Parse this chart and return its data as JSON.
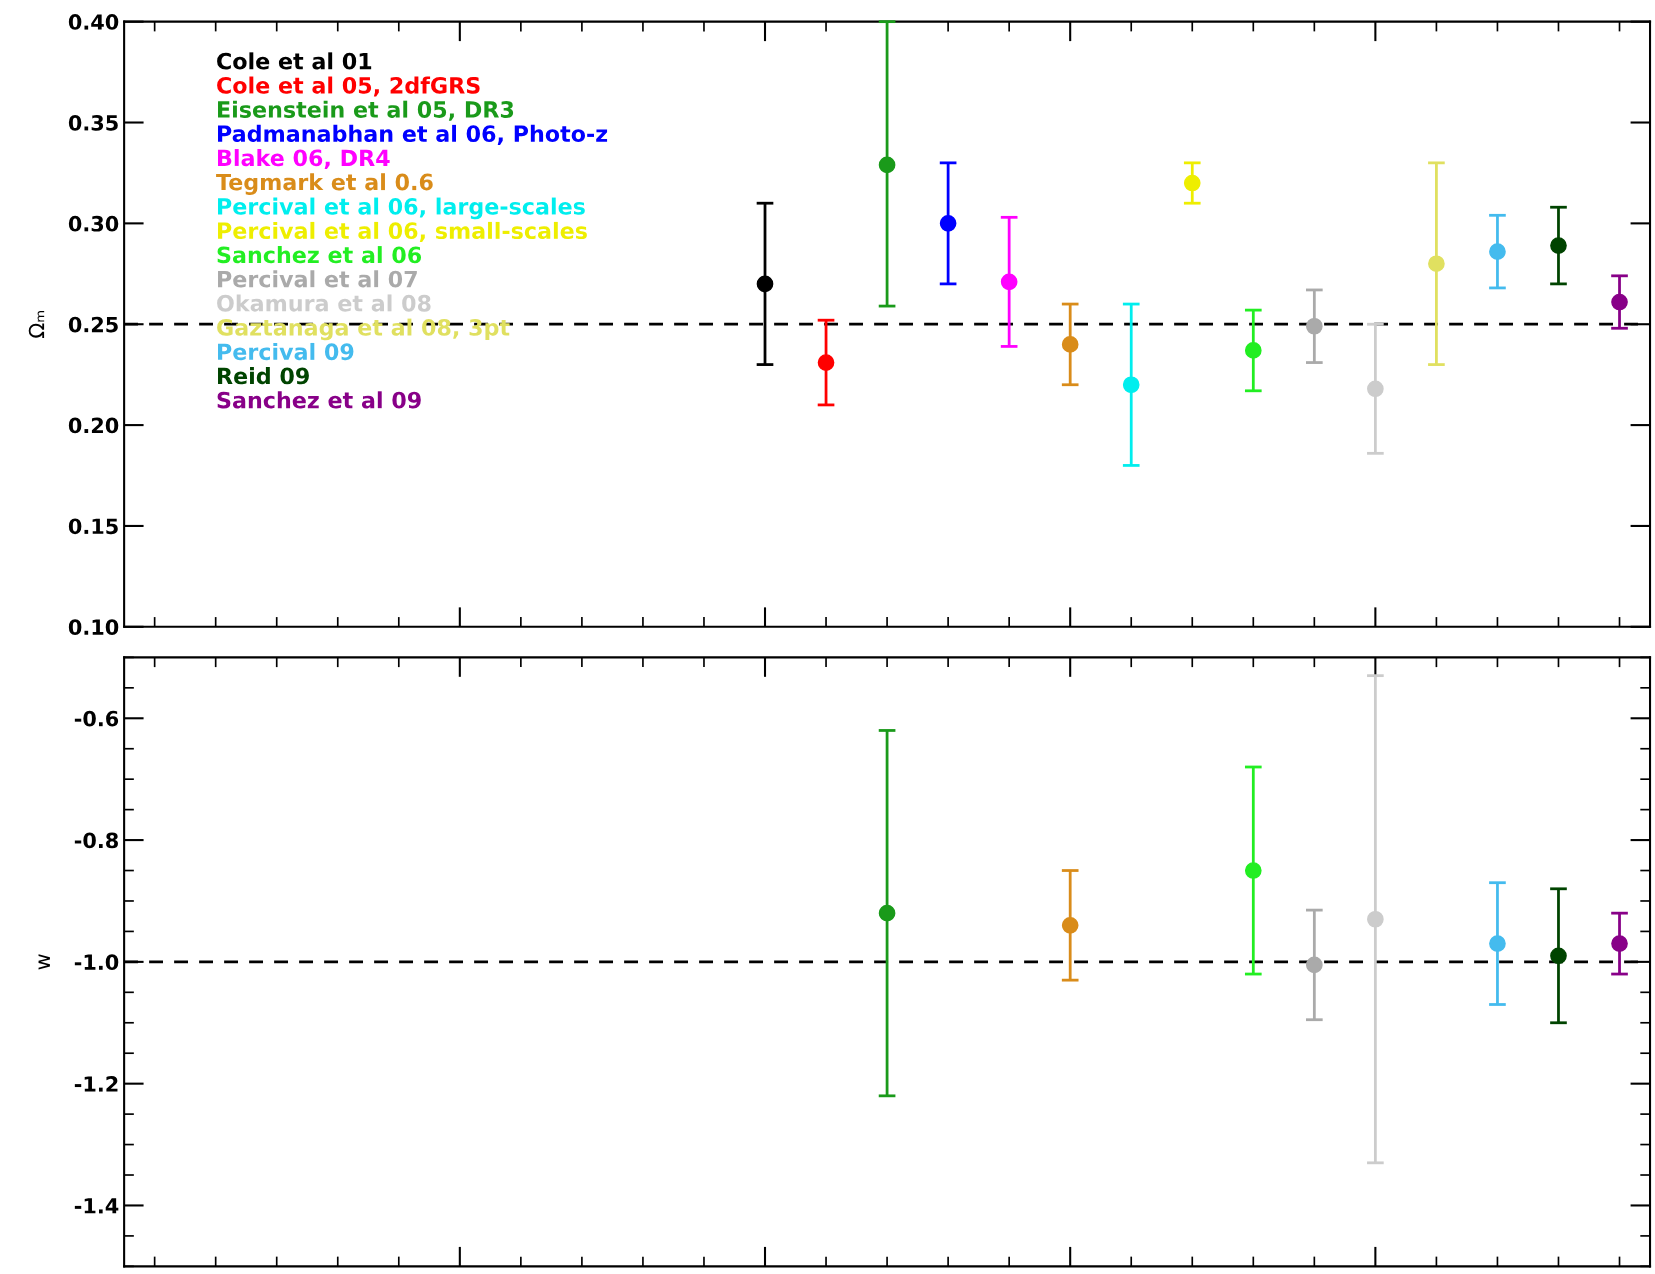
{
  "chart_data": [
    {
      "type": "scatter",
      "ylabel": "Ωₘ",
      "categories": [
        null,
        null,
        null,
        null,
        null,
        null,
        null,
        null,
        null,
        null,
        null,
        null,
        null,
        null,
        null,
        null,
        null,
        null,
        null,
        null,
        null,
        null,
        null,
        null,
        null
      ],
      "ylim": [
        0.1,
        0.4
      ],
      "yticks": [
        {
          "value": 0.1,
          "label": "0.10"
        },
        {
          "value": 0.15,
          "label": "0.15"
        },
        {
          "value": 0.2,
          "label": "0.20"
        },
        {
          "value": 0.25,
          "label": "0.25"
        },
        {
          "value": 0.3,
          "label": "0.30"
        },
        {
          "value": 0.35,
          "label": "0.35"
        },
        {
          "value": 0.4,
          "label": "0.40"
        }
      ],
      "tick_labels": "y",
      "legend": "top left",
      "marker": "circle",
      "grid": false,
      "ref_lines": [
        {
          "axis": "y",
          "value": 0.25,
          "color": "#000000",
          "line_style": "dashed"
        }
      ],
      "series": [
        {
          "name": "Cole et al 01",
          "color": "#000000",
          "values": [
            null,
            null,
            null,
            null,
            null,
            null,
            null,
            null,
            null,
            null,
            0.27,
            null,
            null,
            null,
            null,
            null,
            null,
            null,
            null,
            null,
            null,
            null,
            null,
            null,
            null
          ],
          "errors": [
            null,
            null,
            null,
            null,
            null,
            null,
            null,
            null,
            null,
            null,
            [
              0.23,
              0.31
            ],
            null,
            null,
            null,
            null,
            null,
            null,
            null,
            null,
            null,
            null,
            null,
            null,
            null,
            null
          ]
        },
        {
          "name": "Cole et al 05, 2dfGRS",
          "color": "#ff0000",
          "values": [
            null,
            null,
            null,
            null,
            null,
            null,
            null,
            null,
            null,
            null,
            null,
            0.231,
            null,
            null,
            null,
            null,
            null,
            null,
            null,
            null,
            null,
            null,
            null,
            null,
            null
          ],
          "errors": [
            null,
            null,
            null,
            null,
            null,
            null,
            null,
            null,
            null,
            null,
            null,
            [
              0.21,
              0.252
            ],
            null,
            null,
            null,
            null,
            null,
            null,
            null,
            null,
            null,
            null,
            null,
            null,
            null
          ]
        },
        {
          "name": "Eisenstein et al 05, DR3",
          "color": "#1a9a1a",
          "values": [
            null,
            null,
            null,
            null,
            null,
            null,
            null,
            null,
            null,
            null,
            null,
            null,
            0.329,
            null,
            null,
            null,
            null,
            null,
            null,
            null,
            null,
            null,
            null,
            null,
            null
          ],
          "errors": [
            null,
            null,
            null,
            null,
            null,
            null,
            null,
            null,
            null,
            null,
            null,
            null,
            [
              0.259,
              0.4
            ],
            null,
            null,
            null,
            null,
            null,
            null,
            null,
            null,
            null,
            null,
            null,
            null
          ]
        },
        {
          "name": "Padmanabhan et al 06, Photo-z",
          "color": "#0000ff",
          "values": [
            null,
            null,
            null,
            null,
            null,
            null,
            null,
            null,
            null,
            null,
            null,
            null,
            null,
            0.3,
            null,
            null,
            null,
            null,
            null,
            null,
            null,
            null,
            null,
            null,
            null
          ],
          "errors": [
            null,
            null,
            null,
            null,
            null,
            null,
            null,
            null,
            null,
            null,
            null,
            null,
            null,
            [
              0.27,
              0.33
            ],
            null,
            null,
            null,
            null,
            null,
            null,
            null,
            null,
            null,
            null,
            null
          ]
        },
        {
          "name": "Blake 06, DR4",
          "color": "#ff00ff",
          "values": [
            null,
            null,
            null,
            null,
            null,
            null,
            null,
            null,
            null,
            null,
            null,
            null,
            null,
            null,
            0.271,
            null,
            null,
            null,
            null,
            null,
            null,
            null,
            null,
            null,
            null
          ],
          "errors": [
            null,
            null,
            null,
            null,
            null,
            null,
            null,
            null,
            null,
            null,
            null,
            null,
            null,
            null,
            [
              0.239,
              0.303
            ],
            null,
            null,
            null,
            null,
            null,
            null,
            null,
            null,
            null,
            null
          ]
        },
        {
          "name": "Tegmark et al 0.6",
          "color": "#d98c1a",
          "values": [
            null,
            null,
            null,
            null,
            null,
            null,
            null,
            null,
            null,
            null,
            null,
            null,
            null,
            null,
            null,
            0.24,
            null,
            null,
            null,
            null,
            null,
            null,
            null,
            null,
            null
          ],
          "errors": [
            null,
            null,
            null,
            null,
            null,
            null,
            null,
            null,
            null,
            null,
            null,
            null,
            null,
            null,
            null,
            [
              0.22,
              0.26
            ],
            null,
            null,
            null,
            null,
            null,
            null,
            null,
            null,
            null
          ]
        },
        {
          "name": "Percival et al 06, large-scales",
          "color": "#00eeee",
          "values": [
            null,
            null,
            null,
            null,
            null,
            null,
            null,
            null,
            null,
            null,
            null,
            null,
            null,
            null,
            null,
            null,
            0.22,
            null,
            null,
            null,
            null,
            null,
            null,
            null,
            null
          ],
          "errors": [
            null,
            null,
            null,
            null,
            null,
            null,
            null,
            null,
            null,
            null,
            null,
            null,
            null,
            null,
            null,
            null,
            [
              0.18,
              0.26
            ],
            null,
            null,
            null,
            null,
            null,
            null,
            null,
            null
          ]
        },
        {
          "name": "Percival et al 06, small-scales",
          "color": "#eeee00",
          "values": [
            null,
            null,
            null,
            null,
            null,
            null,
            null,
            null,
            null,
            null,
            null,
            null,
            null,
            null,
            null,
            null,
            null,
            0.32,
            null,
            null,
            null,
            null,
            null,
            null,
            null
          ],
          "errors": [
            null,
            null,
            null,
            null,
            null,
            null,
            null,
            null,
            null,
            null,
            null,
            null,
            null,
            null,
            null,
            null,
            null,
            [
              0.31,
              0.33
            ],
            null,
            null,
            null,
            null,
            null,
            null,
            null
          ]
        },
        {
          "name": "Sanchez et al 06",
          "color": "#22ee22",
          "values": [
            null,
            null,
            null,
            null,
            null,
            null,
            null,
            null,
            null,
            null,
            null,
            null,
            null,
            null,
            null,
            null,
            null,
            null,
            0.237,
            null,
            null,
            null,
            null,
            null,
            null
          ],
          "errors": [
            null,
            null,
            null,
            null,
            null,
            null,
            null,
            null,
            null,
            null,
            null,
            null,
            null,
            null,
            null,
            null,
            null,
            null,
            [
              0.217,
              0.257
            ],
            null,
            null,
            null,
            null,
            null,
            null
          ]
        },
        {
          "name": "Percival et al 07",
          "color": "#aaaaaa",
          "values": [
            null,
            null,
            null,
            null,
            null,
            null,
            null,
            null,
            null,
            null,
            null,
            null,
            null,
            null,
            null,
            null,
            null,
            null,
            null,
            0.249,
            null,
            null,
            null,
            null,
            null
          ],
          "errors": [
            null,
            null,
            null,
            null,
            null,
            null,
            null,
            null,
            null,
            null,
            null,
            null,
            null,
            null,
            null,
            null,
            null,
            null,
            null,
            [
              0.231,
              0.267
            ],
            null,
            null,
            null,
            null,
            null
          ]
        },
        {
          "name": "Okamura et al 08",
          "color": "#cccccc",
          "values": [
            null,
            null,
            null,
            null,
            null,
            null,
            null,
            null,
            null,
            null,
            null,
            null,
            null,
            null,
            null,
            null,
            null,
            null,
            null,
            null,
            0.218,
            null,
            null,
            null,
            null
          ],
          "errors": [
            null,
            null,
            null,
            null,
            null,
            null,
            null,
            null,
            null,
            null,
            null,
            null,
            null,
            null,
            null,
            null,
            null,
            null,
            null,
            null,
            [
              0.186,
              0.25
            ],
            null,
            null,
            null,
            null
          ]
        },
        {
          "name": "Gaztanaga et al 08, 3pt",
          "color": "#e0e060",
          "values": [
            null,
            null,
            null,
            null,
            null,
            null,
            null,
            null,
            null,
            null,
            null,
            null,
            null,
            null,
            null,
            null,
            null,
            null,
            null,
            null,
            null,
            0.28,
            null,
            null,
            null
          ],
          "errors": [
            null,
            null,
            null,
            null,
            null,
            null,
            null,
            null,
            null,
            null,
            null,
            null,
            null,
            null,
            null,
            null,
            null,
            null,
            null,
            null,
            null,
            [
              0.23,
              0.33
            ],
            null,
            null,
            null
          ]
        },
        {
          "name": "Percival 09",
          "color": "#44bbee",
          "values": [
            null,
            null,
            null,
            null,
            null,
            null,
            null,
            null,
            null,
            null,
            null,
            null,
            null,
            null,
            null,
            null,
            null,
            null,
            null,
            null,
            null,
            null,
            0.286,
            null,
            null
          ],
          "errors": [
            null,
            null,
            null,
            null,
            null,
            null,
            null,
            null,
            null,
            null,
            null,
            null,
            null,
            null,
            null,
            null,
            null,
            null,
            null,
            null,
            null,
            null,
            [
              0.268,
              0.304
            ],
            null,
            null
          ]
        },
        {
          "name": "Reid 09",
          "color": "#004400",
          "values": [
            null,
            null,
            null,
            null,
            null,
            null,
            null,
            null,
            null,
            null,
            null,
            null,
            null,
            null,
            null,
            null,
            null,
            null,
            null,
            null,
            null,
            null,
            null,
            0.289,
            null
          ],
          "errors": [
            null,
            null,
            null,
            null,
            null,
            null,
            null,
            null,
            null,
            null,
            null,
            null,
            null,
            null,
            null,
            null,
            null,
            null,
            null,
            null,
            null,
            null,
            null,
            [
              0.27,
              0.308
            ],
            null
          ]
        },
        {
          "name": "Sanchez et al 09",
          "color": "#880088",
          "values": [
            null,
            null,
            null,
            null,
            null,
            null,
            null,
            null,
            null,
            null,
            null,
            null,
            null,
            null,
            null,
            null,
            null,
            null,
            null,
            null,
            null,
            null,
            null,
            null,
            0.261
          ],
          "errors": [
            null,
            null,
            null,
            null,
            null,
            null,
            null,
            null,
            null,
            null,
            null,
            null,
            null,
            null,
            null,
            null,
            null,
            null,
            null,
            null,
            null,
            null,
            null,
            null,
            [
              0.248,
              0.274
            ]
          ]
        }
      ]
    },
    {
      "type": "scatter",
      "ylabel": "w",
      "categories": [
        null,
        null,
        null,
        null,
        null,
        null,
        null,
        null,
        null,
        null,
        null,
        null,
        null,
        null,
        null,
        null,
        null,
        null,
        null,
        null,
        null,
        null,
        null,
        null,
        null
      ],
      "ylim": [
        -1.5,
        -0.5
      ],
      "yticks": [
        {
          "value": -1.4,
          "label": "-1.4"
        },
        {
          "value": -1.2,
          "label": "-1.2"
        },
        {
          "value": -1.0,
          "label": "-1.0"
        },
        {
          "value": -0.8,
          "label": "-0.8"
        },
        {
          "value": -0.6,
          "label": "-0.6"
        }
      ],
      "tick_labels": "y",
      "marker": "circle",
      "grid": false,
      "ref_lines": [
        {
          "axis": "y",
          "value": -1.0,
          "color": "#000000",
          "line_style": "dashed"
        }
      ],
      "series": [
        {
          "color": "#1a9a1a",
          "values": [
            null,
            null,
            null,
            null,
            null,
            null,
            null,
            null,
            null,
            null,
            null,
            null,
            -0.92,
            null,
            null,
            null,
            null,
            null,
            null,
            null,
            null,
            null,
            null,
            null,
            null
          ],
          "errors": [
            null,
            null,
            null,
            null,
            null,
            null,
            null,
            null,
            null,
            null,
            null,
            null,
            [
              -1.22,
              -0.62
            ],
            null,
            null,
            null,
            null,
            null,
            null,
            null,
            null,
            null,
            null,
            null,
            null
          ]
        },
        {
          "color": "#d98c1a",
          "values": [
            null,
            null,
            null,
            null,
            null,
            null,
            null,
            null,
            null,
            null,
            null,
            null,
            null,
            null,
            null,
            -0.94,
            null,
            null,
            null,
            null,
            null,
            null,
            null,
            null,
            null
          ],
          "errors": [
            null,
            null,
            null,
            null,
            null,
            null,
            null,
            null,
            null,
            null,
            null,
            null,
            null,
            null,
            null,
            [
              -1.03,
              -0.85
            ],
            null,
            null,
            null,
            null,
            null,
            null,
            null,
            null,
            null
          ]
        },
        {
          "color": "#22ee22",
          "values": [
            null,
            null,
            null,
            null,
            null,
            null,
            null,
            null,
            null,
            null,
            null,
            null,
            null,
            null,
            null,
            null,
            null,
            null,
            -0.85,
            null,
            null,
            null,
            null,
            null,
            null
          ],
          "errors": [
            null,
            null,
            null,
            null,
            null,
            null,
            null,
            null,
            null,
            null,
            null,
            null,
            null,
            null,
            null,
            null,
            null,
            null,
            [
              -1.02,
              -0.68
            ],
            null,
            null,
            null,
            null,
            null,
            null
          ]
        },
        {
          "color": "#aaaaaa",
          "values": [
            null,
            null,
            null,
            null,
            null,
            null,
            null,
            null,
            null,
            null,
            null,
            null,
            null,
            null,
            null,
            null,
            null,
            null,
            null,
            -1.005,
            null,
            null,
            null,
            null,
            null
          ],
          "errors": [
            null,
            null,
            null,
            null,
            null,
            null,
            null,
            null,
            null,
            null,
            null,
            null,
            null,
            null,
            null,
            null,
            null,
            null,
            null,
            [
              -1.095,
              -0.915
            ],
            null,
            null,
            null,
            null,
            null
          ]
        },
        {
          "color": "#cccccc",
          "values": [
            null,
            null,
            null,
            null,
            null,
            null,
            null,
            null,
            null,
            null,
            null,
            null,
            null,
            null,
            null,
            null,
            null,
            null,
            null,
            null,
            -0.93,
            null,
            null,
            null,
            null
          ],
          "errors": [
            null,
            null,
            null,
            null,
            null,
            null,
            null,
            null,
            null,
            null,
            null,
            null,
            null,
            null,
            null,
            null,
            null,
            null,
            null,
            null,
            [
              -1.33,
              -0.53
            ],
            null,
            null,
            null,
            null
          ]
        },
        {
          "color": "#44bbee",
          "values": [
            null,
            null,
            null,
            null,
            null,
            null,
            null,
            null,
            null,
            null,
            null,
            null,
            null,
            null,
            null,
            null,
            null,
            null,
            null,
            null,
            null,
            null,
            -0.97,
            null,
            null
          ],
          "errors": [
            null,
            null,
            null,
            null,
            null,
            null,
            null,
            null,
            null,
            null,
            null,
            null,
            null,
            null,
            null,
            null,
            null,
            null,
            null,
            null,
            null,
            null,
            [
              -1.07,
              -0.87
            ],
            null,
            null
          ]
        },
        {
          "color": "#004400",
          "values": [
            null,
            null,
            null,
            null,
            null,
            null,
            null,
            null,
            null,
            null,
            null,
            null,
            null,
            null,
            null,
            null,
            null,
            null,
            null,
            null,
            null,
            null,
            null,
            -0.99,
            null
          ],
          "errors": [
            null,
            null,
            null,
            null,
            null,
            null,
            null,
            null,
            null,
            null,
            null,
            null,
            null,
            null,
            null,
            null,
            null,
            null,
            null,
            null,
            null,
            null,
            null,
            [
              -1.1,
              -0.88
            ],
            null
          ]
        },
        {
          "color": "#880088",
          "values": [
            null,
            null,
            null,
            null,
            null,
            null,
            null,
            null,
            null,
            null,
            null,
            null,
            null,
            null,
            null,
            null,
            null,
            null,
            null,
            null,
            null,
            null,
            null,
            null,
            -0.97
          ],
          "errors": [
            null,
            null,
            null,
            null,
            null,
            null,
            null,
            null,
            null,
            null,
            null,
            null,
            null,
            null,
            null,
            null,
            null,
            null,
            null,
            null,
            null,
            null,
            null,
            null,
            [
              -1.02,
              -0.92
            ]
          ]
        }
      ]
    }
  ]
}
